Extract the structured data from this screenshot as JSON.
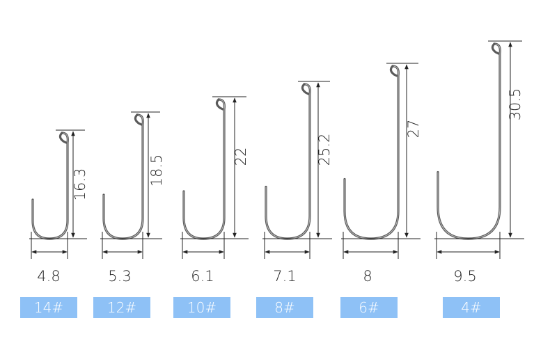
{
  "hooks": [
    {
      "length": 16.3,
      "gap": 4.8,
      "size": "14#"
    },
    {
      "length": 18.5,
      "gap": 5.3,
      "size": "12#"
    },
    {
      "length": 22,
      "gap": 6.1,
      "size": "10#"
    },
    {
      "length": 25.2,
      "gap": 7.1,
      "size": "8#"
    },
    {
      "length": 27,
      "gap": 8,
      "size": "6#"
    },
    {
      "length": 30.5,
      "gap": 9.5,
      "size": "4#"
    }
  ]
}
